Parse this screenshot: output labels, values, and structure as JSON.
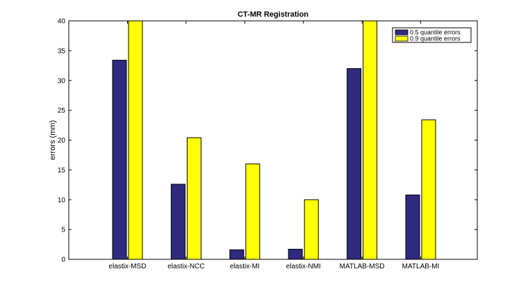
{
  "chart_data": {
    "type": "bar",
    "title": "CT-MR Registration",
    "xlabel": "",
    "ylabel": "errors (mm)",
    "categories": [
      "elastix-MSD",
      "elastix-NCC",
      "elastix-MI",
      "elastix-NMI",
      "MATLAB-MSD",
      "MATLAB-MI"
    ],
    "series": [
      {
        "name": "0.5 quantile errors",
        "color": "#2e2a7e",
        "values": [
          33.4,
          12.6,
          1.6,
          1.7,
          32.0,
          10.8
        ]
      },
      {
        "name": "0.9 quantile errors",
        "color": "#ffff00",
        "values": [
          40,
          20.4,
          16.0,
          10.0,
          40,
          23.4
        ]
      }
    ],
    "ylim": [
      0,
      40
    ],
    "yticks": [
      0,
      5,
      10,
      15,
      20,
      25,
      30,
      35,
      40
    ],
    "legend_position": "top-right",
    "grid": false
  }
}
